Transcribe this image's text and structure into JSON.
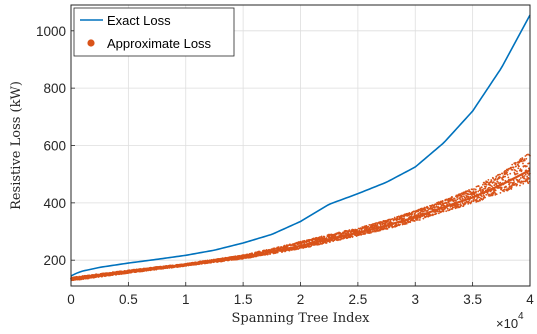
{
  "chart_data": {
    "type": "scatter",
    "xlabel": "Spanning Tree Index",
    "ylabel": "Resistive Loss (kW)",
    "xlim": [
      0,
      40000
    ],
    "ylim": [
      110,
      1090
    ],
    "x_ticks": [
      0,
      5000,
      10000,
      15000,
      20000,
      25000,
      30000,
      35000,
      40000
    ],
    "x_tick_labels": [
      "0",
      "0.5",
      "1",
      "1.5",
      "2",
      "2.5",
      "3",
      "3.5",
      "4"
    ],
    "x_multiplier": {
      "base": "×10",
      "exponent": "4"
    },
    "y_ticks": [
      200,
      400,
      600,
      800,
      1000
    ],
    "y_tick_labels": [
      "200",
      "400",
      "600",
      "800",
      "1000"
    ],
    "grid": true,
    "legend_position": "top-left",
    "series": [
      {
        "name": "Exact Loss",
        "style": "line",
        "color": "#0072BD",
        "x": [
          0,
          500,
          1000,
          2500,
          5000,
          7500,
          10000,
          12500,
          15000,
          17500,
          20000,
          22500,
          25000,
          27500,
          30000,
          32500,
          35000,
          37500,
          40000
        ],
        "y": [
          145,
          155,
          162,
          175,
          190,
          203,
          217,
          235,
          260,
          290,
          335,
          395,
          432,
          472,
          525,
          610,
          720,
          870,
          1055
        ]
      },
      {
        "name": "Approximate Loss",
        "style": "markers",
        "color": "#D95319",
        "band_x": [
          0,
          5000,
          10000,
          15000,
          17500,
          20000,
          22500,
          25000,
          27500,
          30000,
          32500,
          35000,
          37500,
          40000
        ],
        "band_upper": [
          140,
          165,
          188,
          218,
          240,
          265,
          290,
          312,
          340,
          372,
          410,
          450,
          505,
          580
        ],
        "band_lower": [
          128,
          155,
          180,
          205,
          222,
          240,
          262,
          285,
          308,
          335,
          368,
          398,
          435,
          470
        ]
      }
    ]
  }
}
